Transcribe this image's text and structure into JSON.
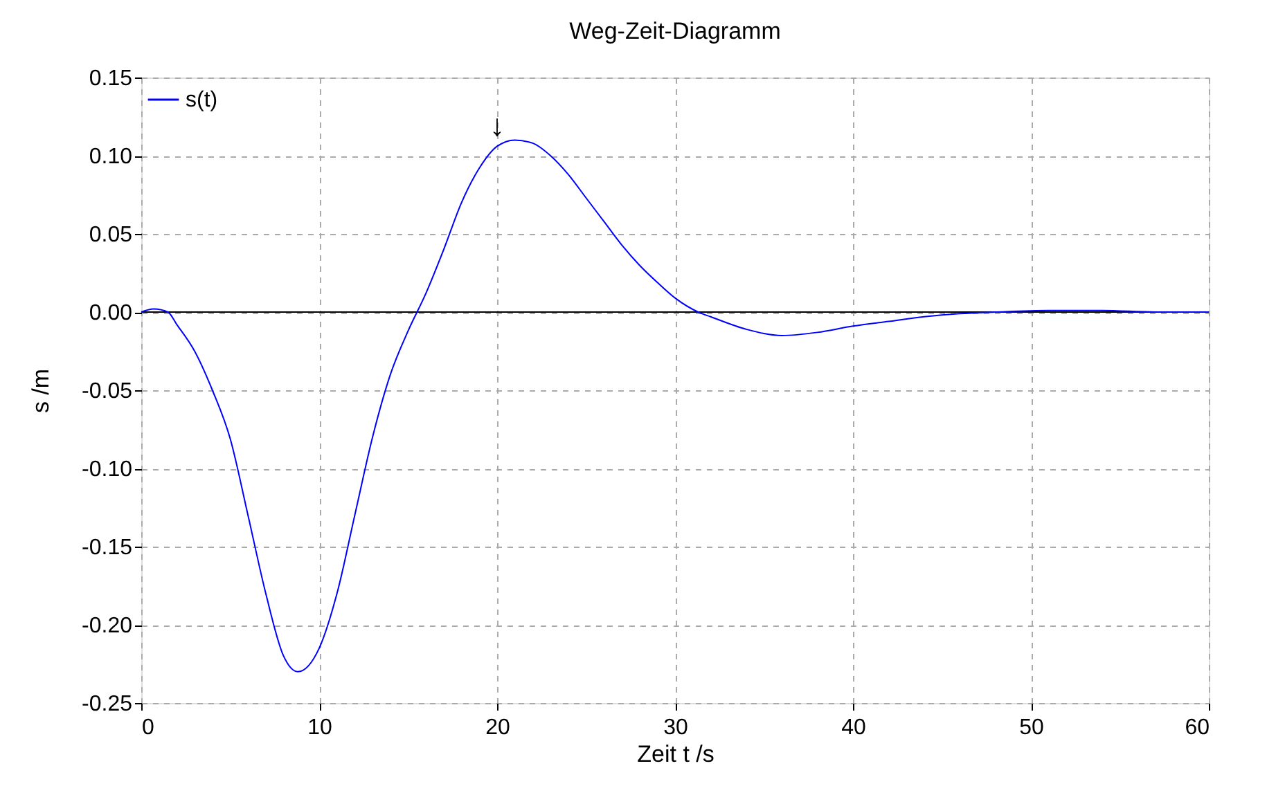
{
  "chart_data": {
    "type": "line",
    "title": "Weg-Zeit-Diagramm",
    "xlabel": "Zeit t /s",
    "ylabel": "s /m",
    "x": [
      0,
      0.7,
      1.5,
      2,
      3,
      4,
      5,
      6,
      7,
      8,
      8.8,
      10,
      11,
      12,
      13,
      14,
      15,
      16,
      17,
      18,
      19,
      20,
      21,
      22,
      23,
      24,
      25,
      26,
      27,
      28,
      29,
      30,
      31.3,
      32,
      34,
      36,
      38,
      40,
      42,
      44,
      46,
      48,
      51,
      54,
      57,
      60
    ],
    "series": [
      {
        "name": "s(t)",
        "color": "#0000ff",
        "values": [
          0,
          0.002,
          0,
          -0.008,
          -0.025,
          -0.05,
          -0.081,
          -0.13,
          -0.18,
          -0.22,
          -0.23,
          -0.215,
          -0.18,
          -0.13,
          -0.08,
          -0.04,
          -0.012,
          0.012,
          0.04,
          0.07,
          0.092,
          0.106,
          0.11,
          0.108,
          0.1,
          0.088,
          0.073,
          0.058,
          0.043,
          0.03,
          0.019,
          0.009,
          0,
          -0.003,
          -0.011,
          -0.015,
          -0.013,
          -0.009,
          -0.006,
          -0.003,
          -0.001,
          0,
          0.001,
          0.001,
          0,
          0
        ]
      }
    ],
    "xlim": [
      0,
      60
    ],
    "xticks": [
      0,
      10,
      20,
      30,
      40,
      50,
      60
    ],
    "ylim": [
      -0.25,
      0.15
    ],
    "yticks": [
      {
        "value": -0.25,
        "label": "-0.25"
      },
      {
        "value": -0.2,
        "label": "-0.20"
      },
      {
        "value": -0.15,
        "label": "-0.15"
      },
      {
        "value": -0.1,
        "label": "-0.10"
      },
      {
        "value": -0.05,
        "label": "-0.05"
      },
      {
        "value": 0,
        "label": "0.00"
      },
      {
        "value": 0.05,
        "label": "0.05"
      },
      {
        "value": 0.1,
        "label": "0.10"
      },
      {
        "value": 0.15,
        "label": "0.15"
      }
    ],
    "ref_lines": [
      {
        "axis": "y",
        "value": 0,
        "color": "#000000"
      }
    ],
    "annotations": [
      {
        "text": "↓",
        "x": 20,
        "y": 0.11
      }
    ],
    "grid": true,
    "legend": "top left",
    "marker": "none",
    "line_style": "solid"
  }
}
